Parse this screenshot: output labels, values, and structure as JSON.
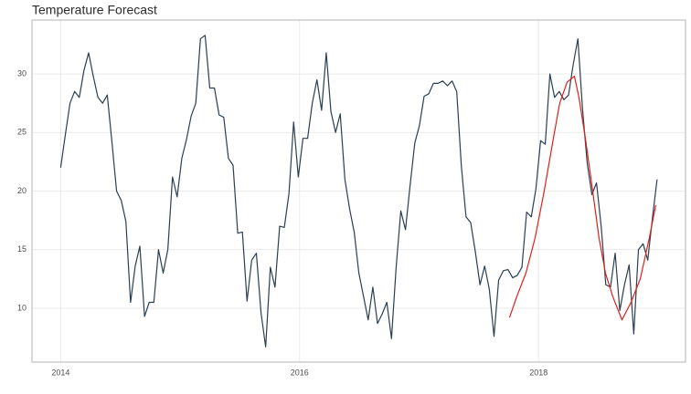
{
  "chart_data": {
    "type": "line",
    "title": "Temperature Forecast",
    "xlim": [
      2013.76,
      2019.23
    ],
    "xticks": [
      2014,
      2016,
      2018
    ],
    "ylim": [
      5.4,
      34.6
    ],
    "yticks": [
      10,
      15,
      20,
      25,
      30
    ],
    "grid": true,
    "series": [
      {
        "color": "#2c3e50",
        "x": [
          2014,
          2014.039,
          2014.078,
          2014.117,
          2014.156,
          2014.195,
          2014.234,
          2014.273,
          2014.312,
          2014.351,
          2014.39,
          2014.429,
          2014.468,
          2014.507,
          2014.546,
          2014.585,
          2014.624,
          2014.663,
          2014.702,
          2014.741,
          2014.78,
          2014.819,
          2014.858,
          2014.897,
          2014.936,
          2014.975,
          2015.014,
          2015.053,
          2015.092,
          2015.131,
          2015.17,
          2015.209,
          2015.248,
          2015.287,
          2015.326,
          2015.365,
          2015.404,
          2015.443,
          2015.482,
          2015.521,
          2015.56,
          2015.599,
          2015.638,
          2015.677,
          2015.716,
          2015.755,
          2015.794,
          2015.833,
          2015.872,
          2015.911,
          2015.95,
          2015.989,
          2016.028,
          2016.067,
          2016.106,
          2016.145,
          2016.184,
          2016.223,
          2016.262,
          2016.301,
          2016.34,
          2016.379,
          2016.418,
          2016.457,
          2016.496,
          2016.535,
          2016.574,
          2016.613,
          2016.652,
          2016.691,
          2016.73,
          2016.769,
          2016.808,
          2016.847,
          2016.886,
          2016.925,
          2016.964,
          2017.003,
          2017.042,
          2017.081,
          2017.12,
          2017.159,
          2017.198,
          2017.237,
          2017.276,
          2017.315,
          2017.354,
          2017.393,
          2017.432,
          2017.471,
          2017.51,
          2017.549,
          2017.588,
          2017.627,
          2017.666,
          2017.705,
          2017.744,
          2017.783,
          2017.822,
          2017.861,
          2017.9,
          2017.939,
          2017.978,
          2018.017,
          2018.056,
          2018.095,
          2018.134,
          2018.173,
          2018.212,
          2018.251,
          2018.29,
          2018.329,
          2018.368,
          2018.407,
          2018.446,
          2018.485,
          2018.524,
          2018.563,
          2018.602,
          2018.641,
          2018.68,
          2018.719,
          2018.758,
          2018.797,
          2018.836,
          2018.875,
          2018.914,
          2018.953,
          2018.992
        ],
        "values": [
          22,
          24.8,
          27.5,
          28.5,
          28,
          30.3,
          31.8,
          29.8,
          28,
          27.5,
          28.2,
          24.2,
          20,
          19.2,
          17.4,
          10.5,
          13.6,
          15.3,
          9.3,
          10.5,
          10.5,
          15,
          13,
          15,
          21.2,
          19.5,
          22.8,
          24.4,
          26.4,
          27.5,
          33,
          33.3,
          28.8,
          28.8,
          26.5,
          26.3,
          22.8,
          22.2,
          16.4,
          16.5,
          10.6,
          14.1,
          14.7,
          9.6,
          6.7,
          13.5,
          11.8,
          17,
          16.9,
          19.8,
          25.9,
          21.2,
          24.5,
          24.5,
          27.5,
          29.5,
          26.9,
          31.8,
          26.8,
          25,
          26.6,
          21,
          18.5,
          16.5,
          13,
          11,
          9,
          11.8,
          8.7,
          9.5,
          10.5,
          7.4,
          13.5,
          18.3,
          16.7,
          20.5,
          24.1,
          25.6,
          28.1,
          28.3,
          29.2,
          29.2,
          29.4,
          29,
          29.4,
          28.5,
          22.1,
          17.8,
          17.3,
          14.8,
          12,
          13.6,
          11.6,
          7.6,
          12.4,
          13.2,
          13.3,
          12.6,
          12.8,
          13.5,
          18.2,
          17.8,
          20.2,
          24.3,
          24,
          30,
          28,
          28.5,
          27.8,
          28.2,
          30.8,
          33,
          27,
          22.4,
          19.7,
          20.7,
          17,
          12,
          11.8,
          14.7,
          9.8,
          12,
          13.7,
          7.8,
          15,
          15.5,
          14.1,
          17.7,
          21
        ]
      },
      {
        "color": "#e0201b",
        "x": [
          2017.757,
          2017.818,
          2017.894,
          2017.971,
          2018.047,
          2018.124,
          2018.177,
          2018.239,
          2018.3,
          2018.338,
          2018.392,
          2018.453,
          2018.506,
          2018.56,
          2018.621,
          2018.698,
          2018.774,
          2018.851,
          2018.927,
          2018.981
        ],
        "values": [
          9.2,
          11,
          13,
          16,
          20,
          24.5,
          27.5,
          29.3,
          29.8,
          28,
          24.5,
          20,
          16,
          13,
          11,
          9,
          10.5,
          12.5,
          16,
          18.8
        ]
      }
    ]
  }
}
